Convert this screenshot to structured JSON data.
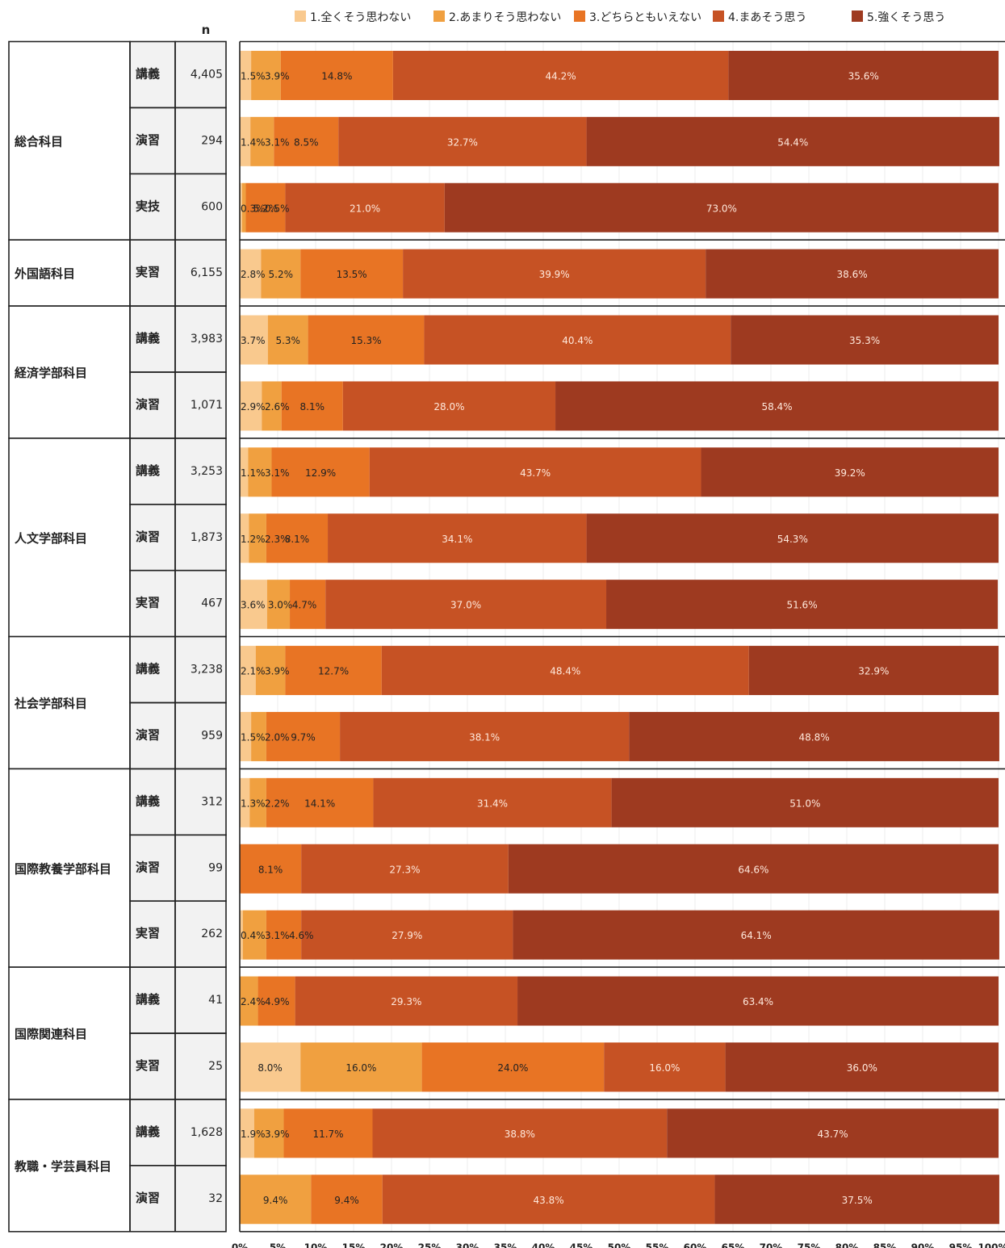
{
  "chart_data": {
    "type": "bar",
    "orientation": "horizontal",
    "stacked": true,
    "n_header": "n",
    "legend": [
      {
        "label": "1.全くそう思わない",
        "color": "#f9c98e"
      },
      {
        "label": "2.あまりそう思わない",
        "color": "#f0a040"
      },
      {
        "label": "3.どちらともいえない",
        "color": "#e87424"
      },
      {
        "label": "4.まあそう思う",
        "color": "#c65224"
      },
      {
        "label": "5.強くそう思う",
        "color": "#9e3a20"
      }
    ],
    "legend_position": "top",
    "xlim": [
      0,
      100
    ],
    "x_ticks": [
      "0%",
      "5%",
      "10%",
      "15%",
      "20%",
      "25%",
      "30%",
      "35%",
      "40%",
      "45%",
      "50%",
      "55%",
      "60%",
      "65%",
      "70%",
      "75%",
      "80%",
      "85%",
      "90%",
      "95%",
      "100%"
    ],
    "grid": true,
    "groups": [
      {
        "category": "総合科目",
        "rows": [
          {
            "type": "講義",
            "n": "4,405",
            "values": [
              1.5,
              3.9,
              14.8,
              44.2,
              35.6
            ],
            "labels": [
              "1.5%",
              "3.9%",
              "14.8%",
              "44.2%",
              "35.6%"
            ]
          },
          {
            "type": "演習",
            "n": "294",
            "values": [
              1.4,
              3.1,
              8.5,
              32.7,
              54.4
            ],
            "labels": [
              "1.4%",
              "3.1%",
              "8.5%",
              "32.7%",
              "54.4%"
            ]
          },
          {
            "type": "実技",
            "n": "600",
            "values": [
              0.3,
              0.5,
              5.2,
              21.0,
              73.0
            ],
            "labels": [
              "0.3%",
              "0.5%",
              "5.2%",
              "21.0%",
              "73.0%"
            ]
          }
        ]
      },
      {
        "category": "外国語科目",
        "rows": [
          {
            "type": "実習",
            "n": "6,155",
            "values": [
              2.8,
              5.2,
              13.5,
              39.9,
              38.6
            ],
            "labels": [
              "2.8%",
              "5.2%",
              "13.5%",
              "39.9%",
              "38.6%"
            ]
          }
        ]
      },
      {
        "category": "経済学部科目",
        "rows": [
          {
            "type": "講義",
            "n": "3,983",
            "values": [
              3.7,
              5.3,
              15.3,
              40.4,
              35.3
            ],
            "labels": [
              "3.7%",
              "5.3%",
              "15.3%",
              "40.4%",
              "35.3%"
            ]
          },
          {
            "type": "演習",
            "n": "1,071",
            "values": [
              2.9,
              2.6,
              8.1,
              28.0,
              58.4
            ],
            "labels": [
              "2.9%",
              "2.6%",
              "8.1%",
              "28.0%",
              "58.4%"
            ]
          }
        ]
      },
      {
        "category": "人文学部科目",
        "rows": [
          {
            "type": "講義",
            "n": "3,253",
            "values": [
              1.1,
              3.1,
              12.9,
              43.7,
              39.2
            ],
            "labels": [
              "1.1%",
              "3.1%",
              "12.9%",
              "43.7%",
              "39.2%"
            ]
          },
          {
            "type": "演習",
            "n": "1,873",
            "values": [
              1.2,
              2.3,
              8.1,
              34.1,
              54.3
            ],
            "labels": [
              "1.2%",
              "2.3%",
              "8.1%",
              "34.1%",
              "54.3%"
            ]
          },
          {
            "type": "実習",
            "n": "467",
            "values": [
              3.6,
              3.0,
              4.7,
              37.0,
              51.6
            ],
            "labels": [
              "3.6%",
              "3.0%",
              "4.7%",
              "37.0%",
              "51.6%"
            ]
          }
        ]
      },
      {
        "category": "社会学部科目",
        "rows": [
          {
            "type": "講義",
            "n": "3,238",
            "values": [
              2.1,
              3.9,
              12.7,
              48.4,
              32.9
            ],
            "labels": [
              "2.1%",
              "3.9%",
              "12.7%",
              "48.4%",
              "32.9%"
            ]
          },
          {
            "type": "演習",
            "n": "959",
            "values": [
              1.5,
              2.0,
              9.7,
              38.1,
              48.8
            ],
            "labels": [
              "1.5%",
              "2.0%",
              "9.7%",
              "38.1%",
              "48.8%"
            ]
          }
        ]
      },
      {
        "category": "国際教養学部科目",
        "rows": [
          {
            "type": "講義",
            "n": "312",
            "values": [
              1.3,
              2.2,
              14.1,
              31.4,
              51.0
            ],
            "labels": [
              "1.3%",
              "2.2%",
              "14.1%",
              "31.4%",
              "51.0%"
            ]
          },
          {
            "type": "演習",
            "n": "99",
            "values": [
              0,
              0,
              8.1,
              27.3,
              64.6
            ],
            "labels": [
              "",
              "",
              "8.1%",
              "27.3%",
              "64.6%"
            ]
          },
          {
            "type": "実習",
            "n": "262",
            "values": [
              0.4,
              3.1,
              4.6,
              27.9,
              64.1
            ],
            "labels": [
              "0.4%",
              "3.1%",
              "4.6%",
              "27.9%",
              "64.1%"
            ]
          }
        ]
      },
      {
        "category": "国際関連科目",
        "rows": [
          {
            "type": "講義",
            "n": "41",
            "values": [
              0,
              2.4,
              4.9,
              29.3,
              63.4
            ],
            "labels": [
              "",
              "2.4%",
              "4.9%",
              "29.3%",
              "63.4%"
            ]
          },
          {
            "type": "実習",
            "n": "25",
            "values": [
              8.0,
              16.0,
              24.0,
              16.0,
              36.0
            ],
            "labels": [
              "8.0%",
              "16.0%",
              "24.0%",
              "16.0%",
              "36.0%"
            ]
          }
        ]
      },
      {
        "category": "教職・学芸員科目",
        "rows": [
          {
            "type": "講義",
            "n": "1,628",
            "values": [
              1.9,
              3.9,
              11.7,
              38.8,
              43.7
            ],
            "labels": [
              "1.9%",
              "3.9%",
              "11.7%",
              "38.8%",
              "43.7%"
            ]
          },
          {
            "type": "演習",
            "n": "32",
            "values": [
              0,
              9.4,
              9.4,
              43.8,
              37.5
            ],
            "labels": [
              "",
              "9.4%",
              "9.4%",
              "43.8%",
              "37.5%"
            ]
          }
        ]
      }
    ]
  }
}
